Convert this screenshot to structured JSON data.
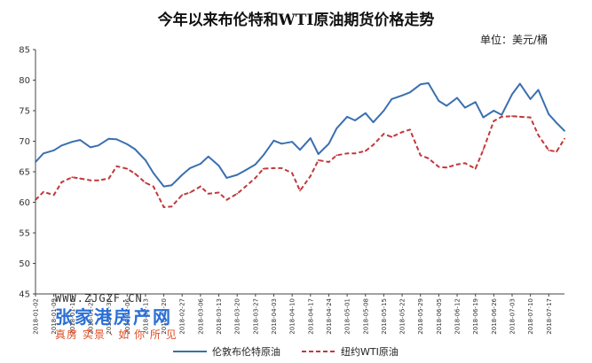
{
  "chart_data": {
    "type": "line",
    "title": "今年以来布伦特和WTI原油期货价格走势",
    "unit": "单位：美元/桶",
    "ylim": [
      45,
      85
    ],
    "yticks": [
      45,
      50,
      55,
      60,
      65,
      70,
      75,
      80,
      85
    ],
    "grid": false,
    "legend_position": "bottom",
    "x_tick_labels": [
      "2018-01-02",
      "2018-01-09",
      "2018-01-16",
      "2018-01-23",
      "2018-01-30",
      "2018-02-06",
      "2018-02-13",
      "2018-02-20",
      "2018-02-27",
      "2018-03-06",
      "2018-03-13",
      "2018-03-20",
      "2018-03-27",
      "2018-04-03",
      "2018-04-10",
      "2018-04-17",
      "2018-04-24",
      "2018-05-01",
      "2018-05-08",
      "2018-05-15",
      "2018-05-22",
      "2018-05-29",
      "2018-06-05",
      "2018-06-12",
      "2018-06-19",
      "2018-06-26",
      "2018-07-03",
      "2018-07-10",
      "2018-07-17"
    ],
    "x": [
      "2018-01-02",
      "2018-01-05",
      "2018-01-09",
      "2018-01-12",
      "2018-01-16",
      "2018-01-19",
      "2018-01-23",
      "2018-01-26",
      "2018-01-30",
      "2018-02-02",
      "2018-02-06",
      "2018-02-09",
      "2018-02-13",
      "2018-02-16",
      "2018-02-20",
      "2018-02-23",
      "2018-02-27",
      "2018-03-02",
      "2018-03-06",
      "2018-03-09",
      "2018-03-13",
      "2018-03-16",
      "2018-03-20",
      "2018-03-23",
      "2018-03-27",
      "2018-03-30",
      "2018-04-03",
      "2018-04-06",
      "2018-04-10",
      "2018-04-13",
      "2018-04-17",
      "2018-04-20",
      "2018-04-24",
      "2018-04-27",
      "2018-05-01",
      "2018-05-04",
      "2018-05-08",
      "2018-05-11",
      "2018-05-15",
      "2018-05-18",
      "2018-05-22",
      "2018-05-25",
      "2018-05-29",
      "2018-06-01",
      "2018-06-05",
      "2018-06-08",
      "2018-06-12",
      "2018-06-15",
      "2018-06-19",
      "2018-06-22",
      "2018-06-26",
      "2018-06-29",
      "2018-07-03",
      "2018-07-06",
      "2018-07-10",
      "2018-07-13",
      "2018-07-17",
      "2018-07-20",
      "2018-07-23"
    ],
    "series": [
      {
        "name": "伦敦布伦特原油",
        "color": "#3a6fb0",
        "style": "solid",
        "values": [
          66.6,
          68.0,
          68.5,
          69.3,
          69.9,
          70.2,
          69.0,
          69.3,
          70.4,
          70.3,
          69.5,
          68.7,
          66.9,
          64.8,
          62.6,
          62.8,
          64.5,
          65.6,
          66.3,
          67.5,
          66.0,
          64.0,
          64.5,
          65.2,
          66.2,
          67.7,
          70.1,
          69.6,
          69.9,
          68.6,
          70.5,
          67.9,
          69.6,
          72.1,
          74.0,
          73.4,
          74.6,
          73.1,
          75.0,
          76.9,
          77.5,
          78.0,
          79.3,
          79.5,
          76.6,
          75.8,
          77.1,
          75.5,
          76.4,
          73.9,
          75.0,
          74.3,
          77.7,
          79.4,
          76.9,
          78.4,
          74.4,
          73.0,
          71.7
        ]
      },
      {
        "name": "纽约WTI原油",
        "color": "#c0393b",
        "style": "dashed",
        "values": [
          60.4,
          61.7,
          61.2,
          63.3,
          64.1,
          63.9,
          63.6,
          63.6,
          63.9,
          65.9,
          65.5,
          64.7,
          63.2,
          62.6,
          59.2,
          59.3,
          61.2,
          61.6,
          62.6,
          61.4,
          61.6,
          60.4,
          61.4,
          62.5,
          64.0,
          65.5,
          65.6,
          65.6,
          64.8,
          61.9,
          64.3,
          66.9,
          66.6,
          67.7,
          68.0,
          68.0,
          68.4,
          69.4,
          71.2,
          70.7,
          71.5,
          71.9,
          67.7,
          67.2,
          65.8,
          65.7,
          66.2,
          66.4,
          65.5,
          68.6,
          73.3,
          74.0,
          74.1,
          74.0,
          73.9,
          71.0,
          68.5,
          68.3,
          70.4
        ]
      }
    ]
  },
  "watermark": {
    "url": "WWW.ZJGZF.CN",
    "name": "张家港房产网",
    "slogan": "真房 实景 · 如 你 所 见"
  }
}
